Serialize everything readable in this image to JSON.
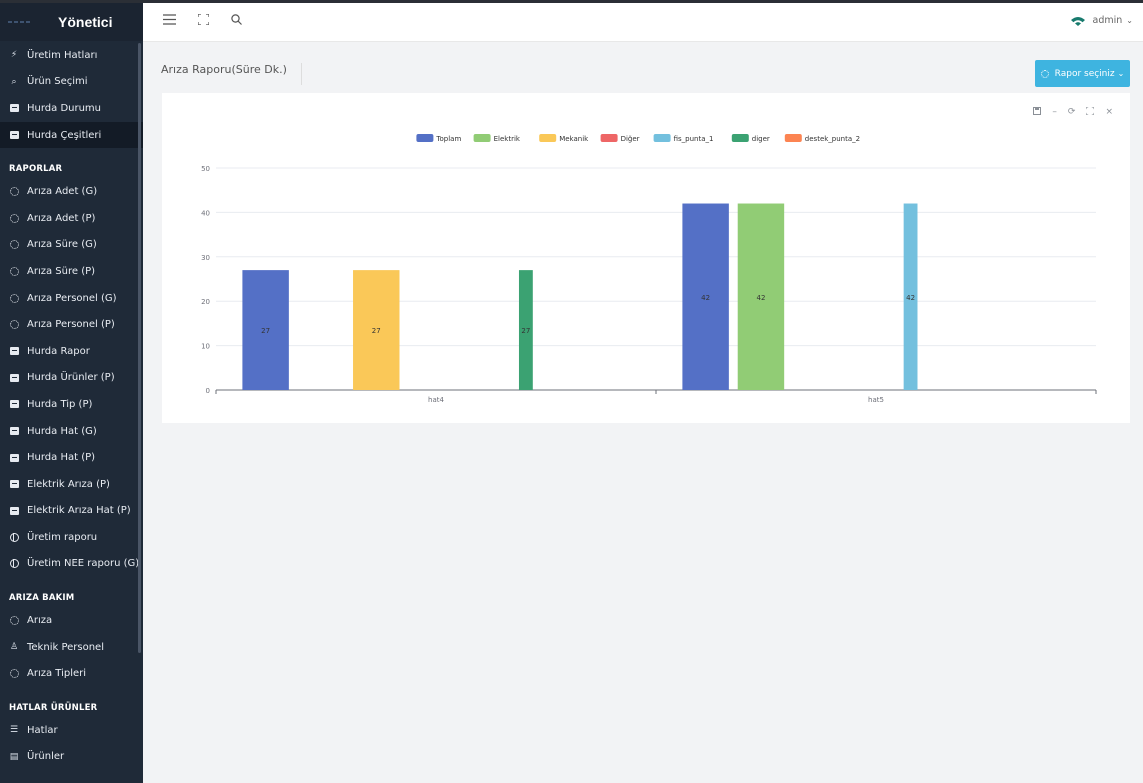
{
  "app": {
    "title": "Yönetici"
  },
  "sidebar": {
    "top_items": [
      {
        "label": "Üretim Hatları",
        "icon": "bolt-icon"
      },
      {
        "label": "Ürün Seçimi",
        "icon": "search-icon"
      },
      {
        "label": "Hurda Durumu",
        "icon": "document-icon"
      },
      {
        "label": "Hurda Çeşitleri",
        "icon": "document-icon",
        "active": true
      }
    ],
    "sections": [
      {
        "header": "RAPORLAR",
        "items": [
          {
            "label": "Arıza Adet (G)",
            "icon": "gear-icon"
          },
          {
            "label": "Arıza Adet (P)",
            "icon": "gear-icon"
          },
          {
            "label": "Arıza Süre (G)",
            "icon": "gear-icon"
          },
          {
            "label": "Arıza Süre (P)",
            "icon": "gear-icon"
          },
          {
            "label": "Arıza Personel (G)",
            "icon": "gear-icon"
          },
          {
            "label": "Arıza Personel (P)",
            "icon": "gear-icon"
          },
          {
            "label": "Hurda Rapor",
            "icon": "document-icon"
          },
          {
            "label": "Hurda Ürünler (P)",
            "icon": "document-icon"
          },
          {
            "label": "Hurda Tip (P)",
            "icon": "document-icon"
          },
          {
            "label": "Hurda Hat (G)",
            "icon": "document-icon"
          },
          {
            "label": "Hurda Hat (P)",
            "icon": "document-icon"
          },
          {
            "label": "Elektrik Arıza (P)",
            "icon": "document-icon"
          },
          {
            "label": "Elektrik Arıza Hat (P)",
            "icon": "document-icon"
          },
          {
            "label": "Üretim raporu",
            "icon": "globe-icon"
          },
          {
            "label": "Üretim NEE raporu (G)",
            "icon": "globe-icon"
          }
        ]
      },
      {
        "header": "ARIZA BAKIM",
        "items": [
          {
            "label": "Arıza",
            "icon": "gear-icon"
          },
          {
            "label": "Teknik Personel",
            "icon": "person-icon"
          },
          {
            "label": "Arıza Tipleri",
            "icon": "gear-icon"
          }
        ]
      },
      {
        "header": "HATLAR ÜRÜNLER",
        "items": [
          {
            "label": "Hatlar",
            "icon": "server-icon"
          },
          {
            "label": "Ürünler",
            "icon": "book-icon"
          }
        ]
      }
    ]
  },
  "topbar": {
    "user": "admin"
  },
  "page": {
    "title": "Arıza Raporu(Süre Dk.)",
    "report_button": "Rapor seçiniz"
  },
  "colors": {
    "Toplam": "#5470c6",
    "Elektrik": "#91cc75",
    "Mekanik": "#fac858",
    "Diğer": "#ee6666",
    "fis_punta_1": "#73c0de",
    "diger": "#3ba272",
    "destek_punta_2": "#fc8452",
    "button": "#3eb4e0",
    "sidebar": "#1f2a38"
  },
  "chart_data": {
    "type": "bar",
    "categories": [
      "hat4",
      "hat5"
    ],
    "ylim": [
      0,
      50
    ],
    "yticks": [
      0,
      10,
      20,
      30,
      40,
      50
    ],
    "series": [
      {
        "name": "Toplam",
        "values": [
          27,
          42
        ]
      },
      {
        "name": "Elektrik",
        "values": [
          null,
          42
        ]
      },
      {
        "name": "Mekanik",
        "values": [
          27,
          null
        ]
      },
      {
        "name": "Diğer",
        "values": [
          null,
          null
        ]
      },
      {
        "name": "fis_punta_1",
        "values": [
          null,
          42
        ]
      },
      {
        "name": "diger",
        "values": [
          27,
          null
        ]
      },
      {
        "name": "destek_punta_2",
        "values": [
          null,
          null
        ]
      }
    ],
    "legend": "top-center",
    "grid": true,
    "data_labels": true
  }
}
